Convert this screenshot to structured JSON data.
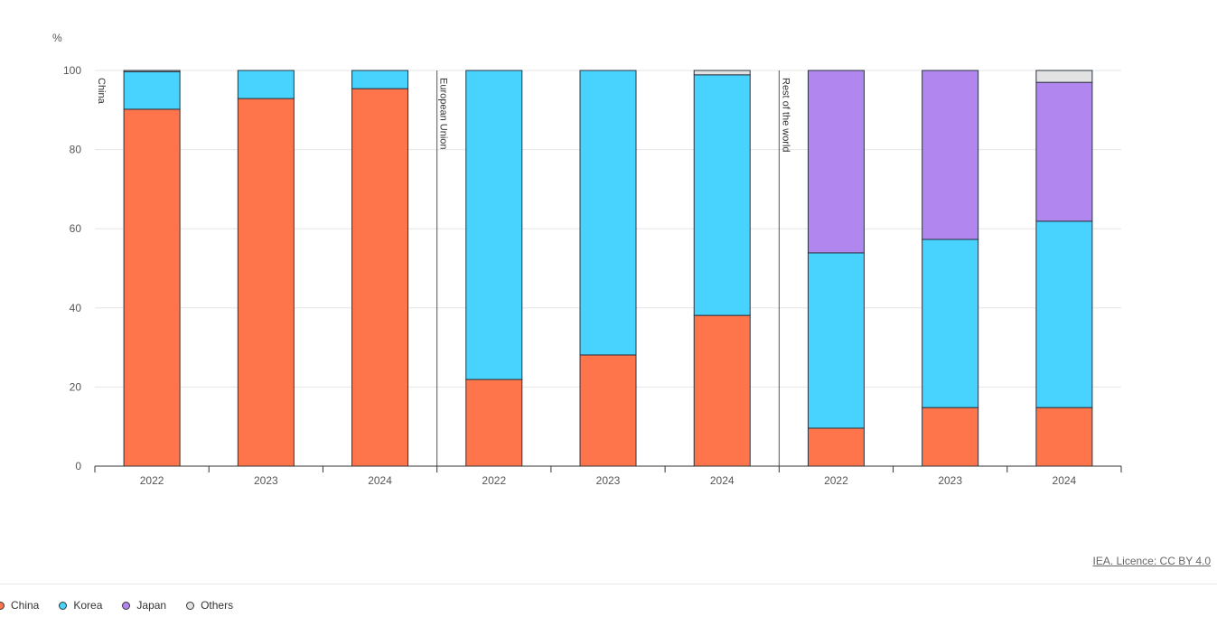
{
  "chart_data": {
    "type": "bar",
    "stacked": true,
    "ylabel": "%",
    "ylim": [
      0,
      100
    ],
    "yticks": [
      0,
      20,
      40,
      60,
      80,
      100
    ],
    "grid": true,
    "legend_placement": "bottom-left",
    "groups": [
      "China",
      "European Union",
      "Rest of the world"
    ],
    "categories": [
      "2022",
      "2023",
      "2024"
    ],
    "series": [
      {
        "name": "China",
        "color": "#ff754b",
        "values": [
          [
            90.2,
            92.9,
            95.4
          ],
          [
            21.9,
            28.1,
            38.1
          ],
          [
            9.6,
            14.8,
            14.8
          ]
        ]
      },
      {
        "name": "Korea",
        "color": "#48d3ff",
        "values": [
          [
            9.5,
            7.1,
            4.6
          ],
          [
            78.1,
            71.9,
            60.8
          ],
          [
            44.3,
            42.5,
            47.1
          ]
        ]
      },
      {
        "name": "Japan",
        "color": "#b187ef",
        "values": [
          [
            0,
            0,
            0
          ],
          [
            0,
            0,
            0
          ],
          [
            46.1,
            42.7,
            35.1
          ]
        ]
      },
      {
        "name": "Others",
        "color": "#e2e2e2",
        "values": [
          [
            0.3,
            0,
            0
          ],
          [
            0,
            0,
            1.1
          ],
          [
            0,
            0,
            3.0
          ]
        ]
      }
    ]
  },
  "credit": "IEA. Licence: CC BY 4.0"
}
